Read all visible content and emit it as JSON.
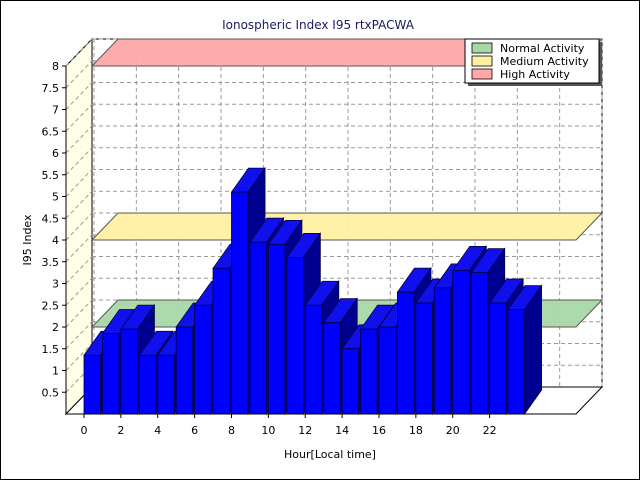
{
  "chart_data": {
    "type": "bar",
    "title": "Ionospheric Index I95 rtxPACWA",
    "xlabel": "Hour[Local time]",
    "ylabel": "I95 Index",
    "ylim": [
      0,
      8
    ],
    "yticks": [
      "0.5",
      "1",
      "1.5",
      "2",
      "2.5",
      "3",
      "3.5",
      "4",
      "4.5",
      "5",
      "5.5",
      "6",
      "6.5",
      "7",
      "7.5",
      "8"
    ],
    "xticks": [
      "0",
      "2",
      "4",
      "6",
      "8",
      "10",
      "12",
      "14",
      "16",
      "18",
      "20",
      "22"
    ],
    "hours": [
      0,
      1,
      2,
      3,
      4,
      5,
      6,
      7,
      8,
      9,
      10,
      11,
      12,
      13,
      14,
      15,
      16,
      17,
      18,
      19,
      20,
      21,
      22,
      23
    ],
    "values": [
      1.35,
      1.85,
      1.95,
      1.35,
      1.35,
      2.0,
      2.5,
      3.35,
      5.1,
      3.95,
      3.9,
      3.6,
      2.5,
      2.1,
      1.5,
      1.95,
      2.0,
      2.8,
      2.55,
      2.9,
      3.3,
      3.25,
      2.55,
      2.4
    ],
    "bands": [
      {
        "name": "Normal Activity",
        "value": 2,
        "color": "#a8d8a8"
      },
      {
        "name": "Medium Activity",
        "value": 4,
        "color": "#fff0a0"
      },
      {
        "name": "High Activity",
        "value": 8,
        "color": "#ffa8a8"
      }
    ],
    "bar_color": "#0000ff",
    "bar_top_color": "#1010ee",
    "bar_side_color": "#000090",
    "grid": true,
    "legend_position": "top-right"
  }
}
